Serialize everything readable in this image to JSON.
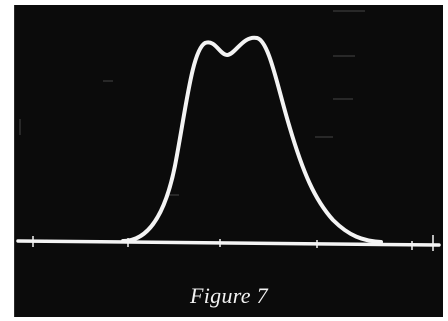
{
  "figure": {
    "caption": "Figure 7"
  },
  "colors": {
    "background": "#0b0b0b",
    "trace": "#f4f4f4",
    "caption": "#f2f2f2"
  }
}
